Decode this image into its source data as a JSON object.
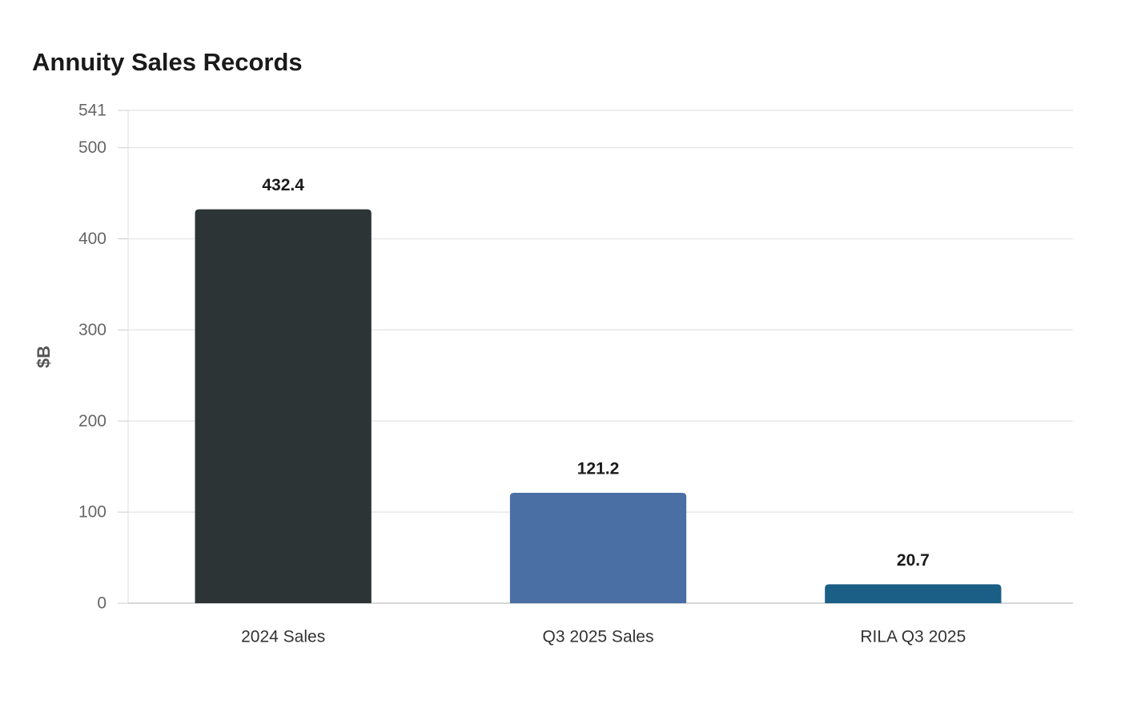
{
  "chart_data": {
    "type": "bar",
    "title": "Annuity Sales Records",
    "ylabel": "$B",
    "xlabel": "",
    "categories": [
      "2024 Sales",
      "Q3 2025 Sales",
      "RILA Q3 2025"
    ],
    "values": [
      432.4,
      121.2,
      20.7
    ],
    "value_labels": [
      "432.4",
      "121.2",
      "20.7"
    ],
    "bar_colors": [
      "#2d3436",
      "#4a6fa5",
      "#1b5e86"
    ],
    "ylim": [
      0,
      541
    ],
    "yticks": [
      0,
      100,
      200,
      300,
      400,
      500,
      541
    ],
    "grid": true,
    "legend": "none"
  }
}
